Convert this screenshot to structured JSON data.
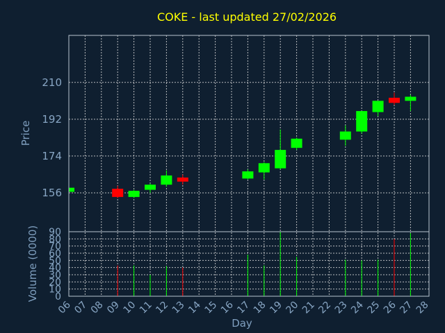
{
  "chart_data": {
    "type": "candlestick",
    "title": "COKE - last updated 27/02/2026",
    "ylabel_price": "Price",
    "ylabel_volume": "Volume (0000)",
    "xlabel": "Day",
    "price_ticks": [
      156,
      174,
      192,
      210
    ],
    "volume_ticks": [
      0,
      10,
      20,
      30,
      40,
      50,
      60,
      70,
      80,
      90
    ],
    "day_ticks": [
      "06",
      "07",
      "08",
      "09",
      "10",
      "11",
      "12",
      "13",
      "14",
      "15",
      "16",
      "17",
      "18",
      "19",
      "20",
      "21",
      "22",
      "23",
      "24",
      "25",
      "26",
      "27",
      "28"
    ],
    "price_range": [
      137,
      233
    ],
    "volume_range": [
      0,
      90
    ],
    "colors": {
      "up": "#00ff00",
      "down": "#ff0000",
      "title": "#ffff00",
      "background": "#0f1f30"
    },
    "candles": [
      {
        "day": "06",
        "open": 156.5,
        "close": 158.5,
        "high": 158.5,
        "low": 156.5,
        "volume": 0
      },
      {
        "day": "09",
        "open": 158.0,
        "close": 154.0,
        "high": 159.5,
        "low": 153.5,
        "volume": 43
      },
      {
        "day": "10",
        "open": 154.0,
        "close": 157.0,
        "high": 157.5,
        "low": 153.5,
        "volume": 43
      },
      {
        "day": "11",
        "open": 157.5,
        "close": 160.0,
        "high": 160.5,
        "low": 156.0,
        "volume": 30
      },
      {
        "day": "12",
        "open": 160.0,
        "close": 164.5,
        "high": 167.0,
        "low": 159.0,
        "volume": 42
      },
      {
        "day": "13",
        "open": 163.5,
        "close": 161.5,
        "high": 165.0,
        "low": 160.0,
        "volume": 40
      },
      {
        "day": "17",
        "open": 163.0,
        "close": 166.5,
        "high": 167.5,
        "low": 162.5,
        "volume": 58
      },
      {
        "day": "18",
        "open": 166.0,
        "close": 170.5,
        "high": 171.0,
        "low": 162.5,
        "volume": 43
      },
      {
        "day": "19",
        "open": 168.0,
        "close": 177.0,
        "high": 187.0,
        "low": 167.5,
        "volume": 90
      },
      {
        "day": "20",
        "open": 178.0,
        "close": 182.5,
        "high": 183.0,
        "low": 177.0,
        "volume": 55
      },
      {
        "day": "23",
        "open": 182.0,
        "close": 186.0,
        "high": 189.0,
        "low": 179.0,
        "volume": 51
      },
      {
        "day": "24",
        "open": 186.0,
        "close": 196.0,
        "high": 196.0,
        "low": 185.0,
        "volume": 50
      },
      {
        "day": "25",
        "open": 195.5,
        "close": 201.0,
        "high": 201.0,
        "low": 193.5,
        "volume": 51
      },
      {
        "day": "26",
        "open": 202.5,
        "close": 200.0,
        "high": 205.0,
        "low": 199.0,
        "volume": 80
      },
      {
        "day": "27",
        "open": 201.0,
        "close": 203.0,
        "high": 204.0,
        "low": 196.0,
        "volume": 88
      }
    ]
  }
}
